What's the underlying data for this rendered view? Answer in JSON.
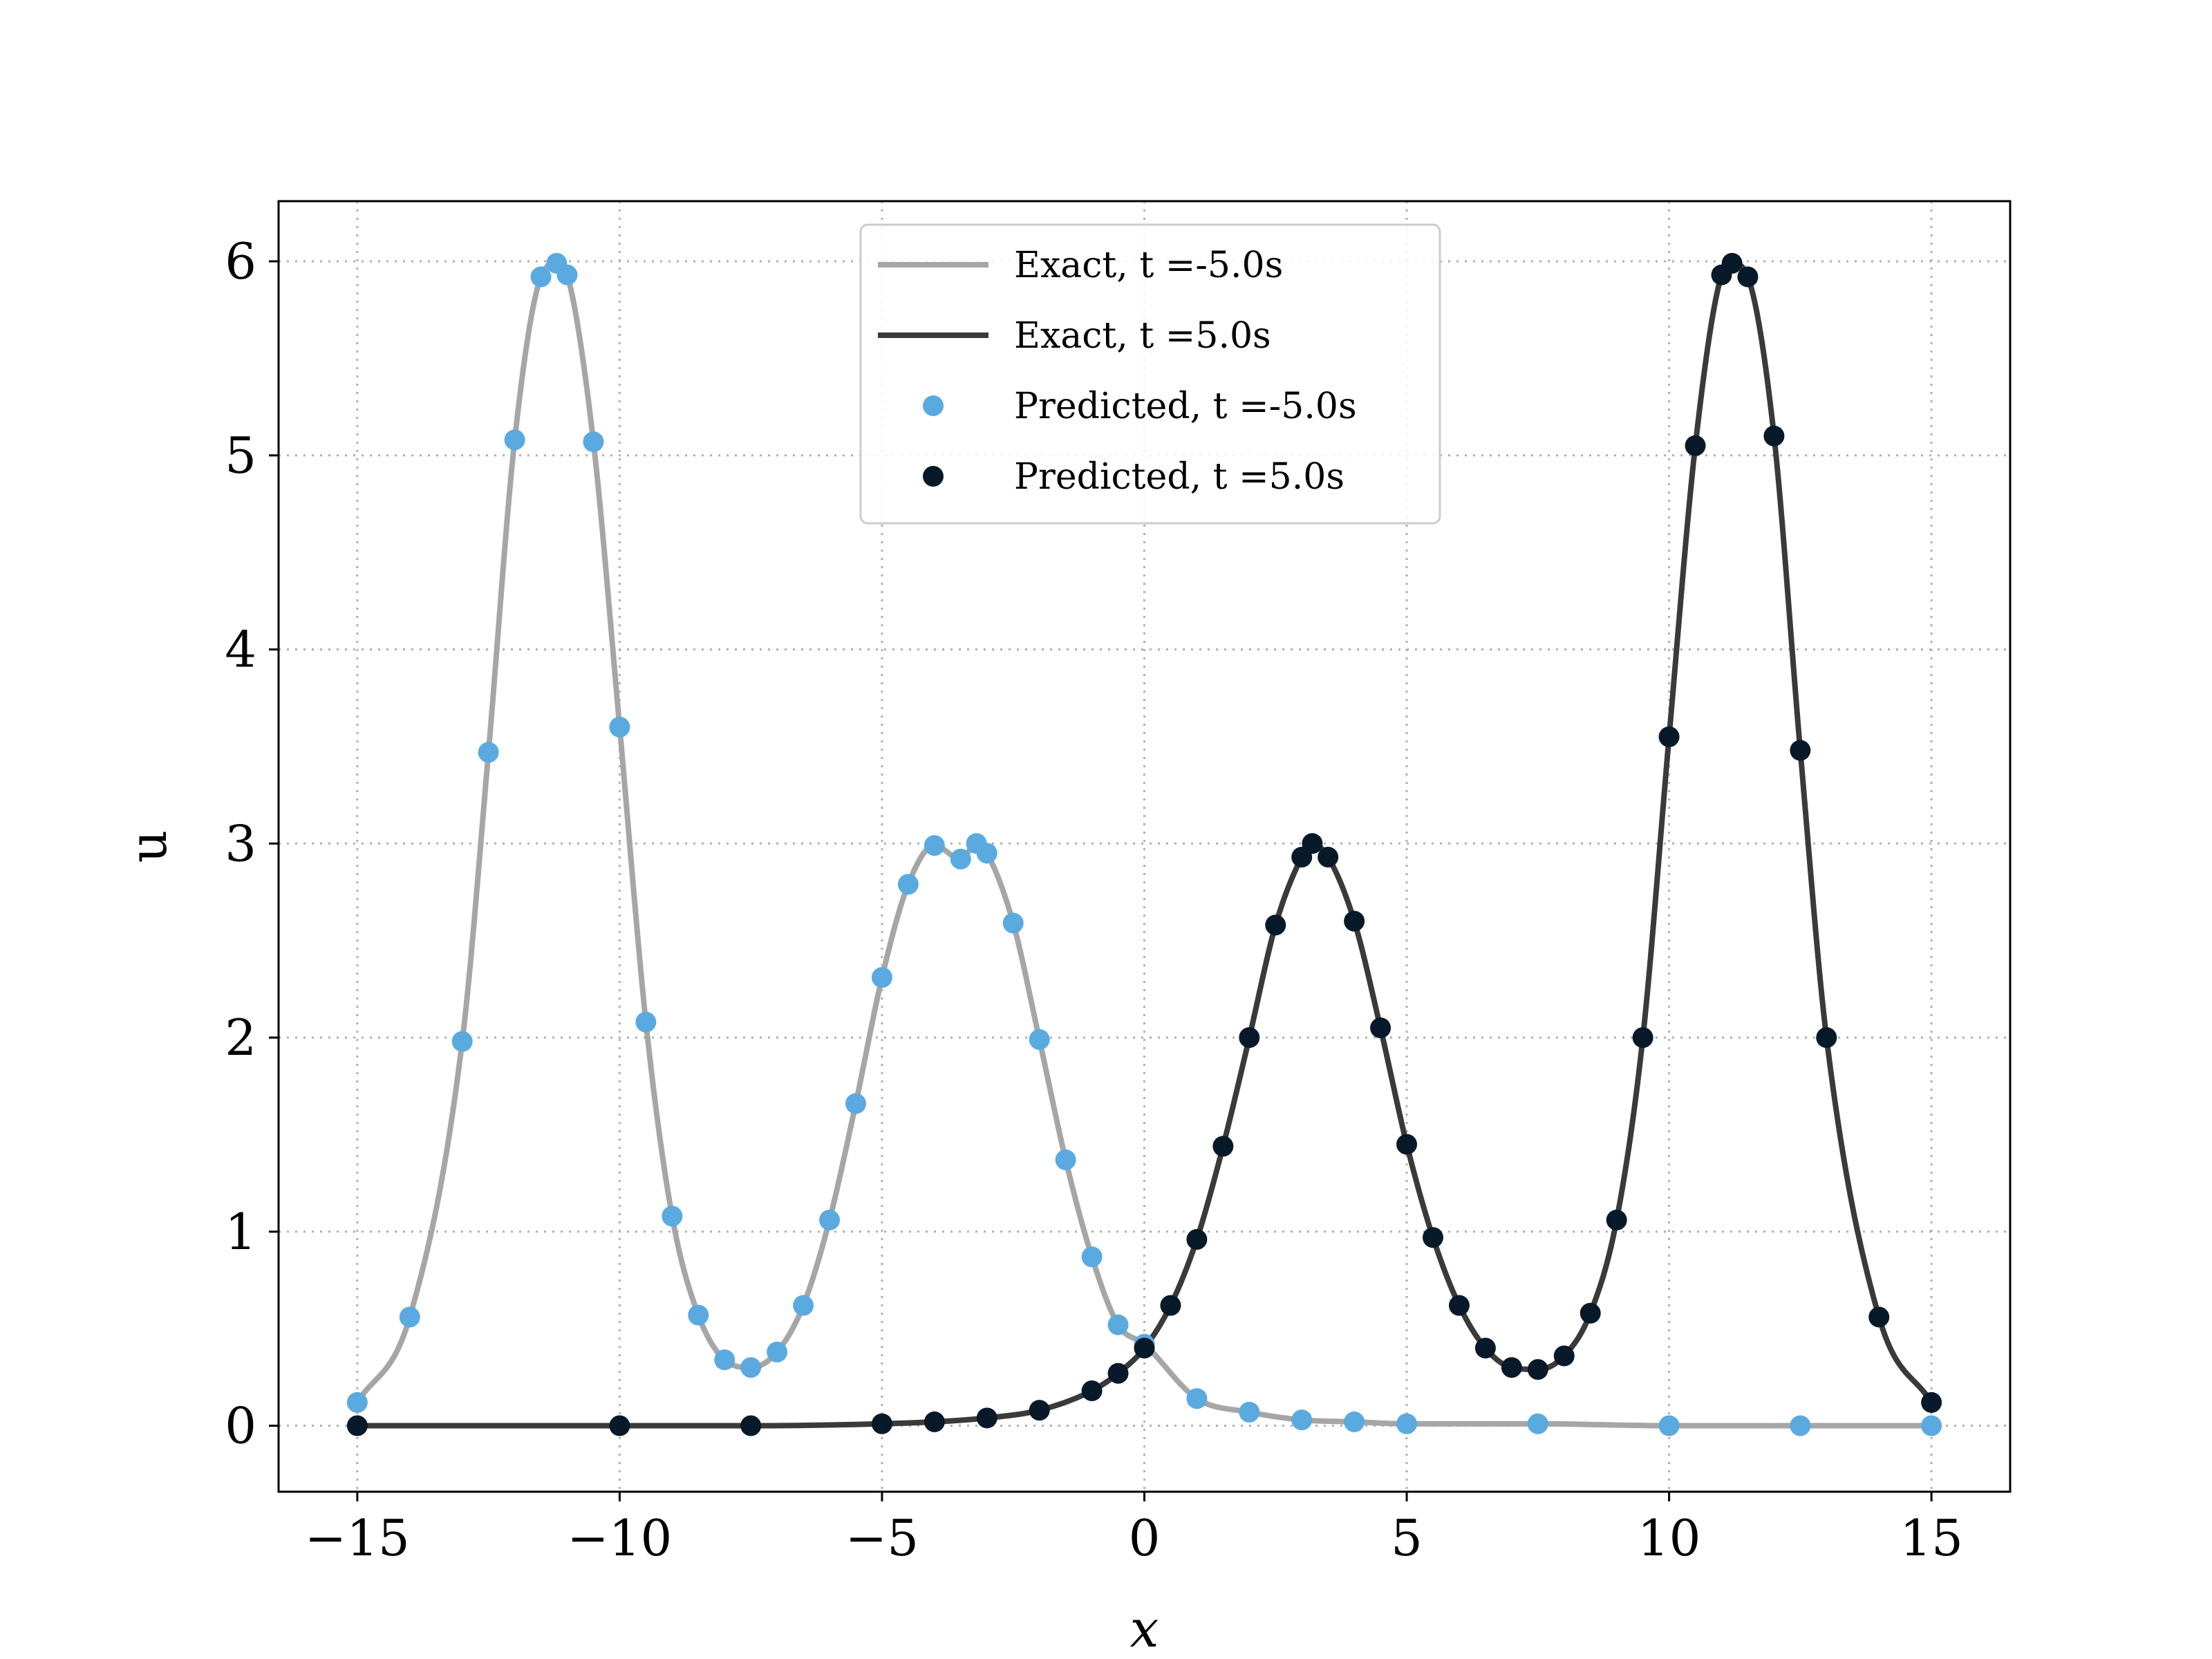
{
  "chart_data": {
    "type": "line",
    "xlabel": "x",
    "ylabel": "u",
    "xlim": [
      -16.5,
      16.5
    ],
    "ylim": [
      -0.34,
      6.31
    ],
    "grid": true,
    "grid_style": "dotted",
    "legend_position": "top-center",
    "x_ticks": [
      -15,
      -10,
      -5,
      0,
      5,
      10,
      15
    ],
    "x_tick_labels": [
      "−15",
      "−10",
      "−5",
      "0",
      "5",
      "10",
      "15"
    ],
    "y_ticks": [
      0,
      1,
      2,
      3,
      4,
      5,
      6
    ],
    "y_tick_labels": [
      "0",
      "1",
      "2",
      "3",
      "4",
      "5",
      "6"
    ],
    "x_range": [
      -15,
      15
    ],
    "colors": {
      "exact_neg": "#a6a6a6",
      "exact_pos": "#3a3a3a",
      "pred_neg": "#5aaae0",
      "pred_pos": "#081a29"
    },
    "series": [
      {
        "name": "Exact, t =-5.0s",
        "kind": "line",
        "x": [
          -15,
          -14,
          -13,
          -12.5,
          -12,
          -11.5,
          -11.2,
          -11,
          -10.5,
          -10,
          -9.5,
          -9,
          -8.5,
          -8,
          -7.5,
          -7,
          -6.5,
          -6,
          -5.5,
          -5,
          -4.5,
          -4,
          -3.5,
          -3.2,
          -3,
          -2.5,
          -2,
          -1.5,
          -1,
          -0.5,
          0,
          1,
          2,
          3,
          4,
          5,
          7.5,
          10,
          12.5,
          15
        ],
        "y": [
          0.12,
          0.56,
          1.98,
          3.47,
          5.08,
          5.92,
          5.99,
          5.93,
          5.07,
          3.6,
          2.08,
          1.08,
          0.57,
          0.34,
          0.3,
          0.38,
          0.62,
          1.06,
          1.66,
          2.31,
          2.79,
          2.99,
          2.92,
          3.0,
          2.95,
          2.59,
          1.99,
          1.37,
          0.87,
          0.52,
          0.42,
          0.14,
          0.07,
          0.03,
          0.02,
          0.01,
          0.01,
          0.0,
          0.0,
          0.0
        ]
      },
      {
        "name": "Exact, t =5.0s",
        "kind": "line",
        "x": [
          -15,
          -10,
          -7.5,
          -5,
          -4,
          -3,
          -2,
          -1,
          -0.5,
          0,
          0.5,
          1,
          1.5,
          2,
          2.5,
          3,
          3.2,
          3.5,
          4,
          4.5,
          5,
          5.5,
          6,
          6.5,
          7,
          7.5,
          8,
          8.5,
          9,
          9.5,
          10,
          10.5,
          11,
          11.2,
          11.5,
          12,
          12.5,
          13,
          14,
          15
        ],
        "y": [
          0.0,
          0.0,
          0.0,
          0.01,
          0.02,
          0.04,
          0.08,
          0.18,
          0.27,
          0.4,
          0.62,
          0.96,
          1.44,
          2.0,
          2.58,
          2.93,
          3.0,
          2.93,
          2.6,
          2.05,
          1.45,
          0.97,
          0.62,
          0.4,
          0.3,
          0.29,
          0.36,
          0.58,
          1.06,
          2.0,
          3.55,
          5.05,
          5.93,
          5.99,
          5.92,
          5.1,
          3.48,
          2.0,
          0.56,
          0.12
        ]
      },
      {
        "name": "Predicted, t =-5.0s",
        "kind": "scatter",
        "x": [
          -15,
          -14,
          -13,
          -12.5,
          -12,
          -11.5,
          -11.2,
          -11,
          -10.5,
          -10,
          -9.5,
          -9,
          -8.5,
          -8,
          -7.5,
          -7,
          -6.5,
          -6,
          -5.5,
          -5,
          -4.5,
          -4,
          -3.5,
          -3.2,
          -3,
          -2.5,
          -2,
          -1.5,
          -1,
          -0.5,
          0,
          1,
          2,
          3,
          4,
          5,
          7.5,
          10,
          12.5,
          15
        ],
        "y": [
          0.12,
          0.56,
          1.98,
          3.47,
          5.08,
          5.92,
          5.99,
          5.93,
          5.07,
          3.6,
          2.08,
          1.08,
          0.57,
          0.34,
          0.3,
          0.38,
          0.62,
          1.06,
          1.66,
          2.31,
          2.79,
          2.99,
          2.92,
          3.0,
          2.95,
          2.59,
          1.99,
          1.37,
          0.87,
          0.52,
          0.42,
          0.14,
          0.07,
          0.03,
          0.02,
          0.01,
          0.01,
          0.0,
          0.0,
          0.0
        ]
      },
      {
        "name": "Predicted, t =5.0s",
        "kind": "scatter",
        "x": [
          -15,
          -10,
          -7.5,
          -5,
          -4,
          -3,
          -2,
          -1,
          -0.5,
          0,
          0.5,
          1,
          1.5,
          2,
          2.5,
          3,
          3.2,
          3.5,
          4,
          4.5,
          5,
          5.5,
          6,
          6.5,
          7,
          7.5,
          8,
          8.5,
          9,
          9.5,
          10,
          10.5,
          11,
          11.2,
          11.5,
          12,
          12.5,
          13,
          14,
          15
        ],
        "y": [
          0.0,
          0.0,
          0.0,
          0.01,
          0.02,
          0.04,
          0.08,
          0.18,
          0.27,
          0.4,
          0.62,
          0.96,
          1.44,
          2.0,
          2.58,
          2.93,
          3.0,
          2.93,
          2.6,
          2.05,
          1.45,
          0.97,
          0.62,
          0.4,
          0.3,
          0.29,
          0.36,
          0.58,
          1.06,
          2.0,
          3.55,
          5.05,
          5.93,
          5.99,
          5.92,
          5.1,
          3.48,
          2.0,
          0.56,
          0.12
        ]
      }
    ]
  }
}
